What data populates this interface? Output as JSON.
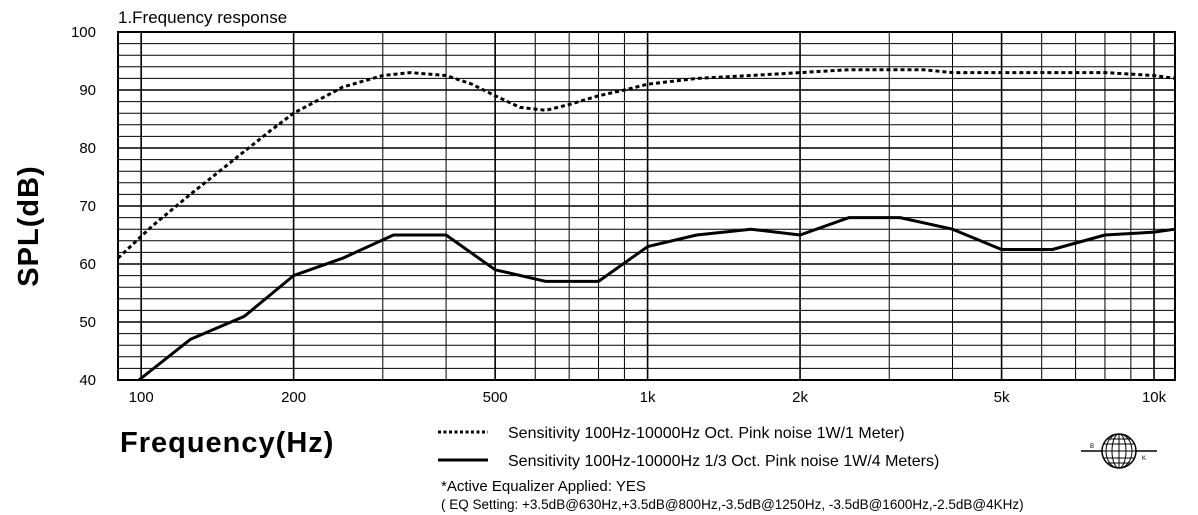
{
  "chart_data": {
    "type": "line",
    "title": "",
    "subtitle": "1.Frequency response",
    "xlabel": "Frequency(Hz)",
    "ylabel": "SPL(dB)",
    "x_scale": "log",
    "xlim": [
      90,
      11000
    ],
    "ylim": [
      40,
      100
    ],
    "grid": true,
    "x_tick_labels": [
      {
        "value": 100,
        "label": "100"
      },
      {
        "value": 200,
        "label": "200"
      },
      {
        "value": 500,
        "label": "500"
      },
      {
        "value": 1000,
        "label": "1k"
      },
      {
        "value": 2000,
        "label": "2k"
      },
      {
        "value": 5000,
        "label": "5k"
      },
      {
        "value": 10000,
        "label": "10k"
      }
    ],
    "y_tick_labels": [
      {
        "value": 40,
        "label": "40"
      },
      {
        "value": 50,
        "label": "50"
      },
      {
        "value": 60,
        "label": "60"
      },
      {
        "value": 70,
        "label": "70"
      },
      {
        "value": 80,
        "label": "80"
      },
      {
        "value": 90,
        "label": "90"
      },
      {
        "value": 100,
        "label": "100"
      }
    ],
    "series": [
      {
        "name": "Sensitivity 100Hz-10000Hz Oct. Pink noise 1W/1 Meter)",
        "style": "dotted",
        "x": [
          90,
          105,
          125,
          150,
          180,
          200,
          250,
          300,
          340,
          400,
          450,
          500,
          560,
          630,
          700,
          800,
          900,
          1000,
          1250,
          1600,
          2000,
          2500,
          3150,
          3500,
          4000,
          5000,
          6300,
          8000,
          10000,
          11000
        ],
        "y": [
          61,
          66.5,
          72,
          77.5,
          83,
          86,
          90.5,
          92.5,
          93,
          92.5,
          91,
          89,
          87,
          86.5,
          87.5,
          89,
          90,
          91,
          92,
          92.5,
          93,
          93.5,
          93.5,
          93.5,
          93,
          93,
          93,
          93,
          92.5,
          92
        ]
      },
      {
        "name": "Sensitivity 100Hz-10000Hz 1/3 Oct. Pink noise 1W/4 Meters)",
        "style": "solid",
        "x": [
          99,
          125,
          160,
          200,
          250,
          315,
          400,
          500,
          630,
          800,
          1000,
          1250,
          1600,
          2000,
          2500,
          3150,
          4000,
          5000,
          6300,
          8000,
          10000,
          11000
        ],
        "y": [
          40,
          47,
          51,
          58,
          61,
          65,
          65,
          59,
          57,
          57,
          63,
          65,
          66,
          65,
          68,
          68,
          66,
          62.5,
          62.5,
          65,
          65.5,
          66
        ]
      }
    ]
  },
  "notes": {
    "eq_applied": "*Active Equalizer Applied: YES",
    "eq_setting": "( EQ Setting: +3.5dB@630Hz,+3.5dB@800Hz,-3.5dB@1250Hz, -3.5dB@1600Hz,-2.5dB@4KHz)"
  },
  "logo": {
    "left_letter": "B",
    "right_letter": "K"
  }
}
